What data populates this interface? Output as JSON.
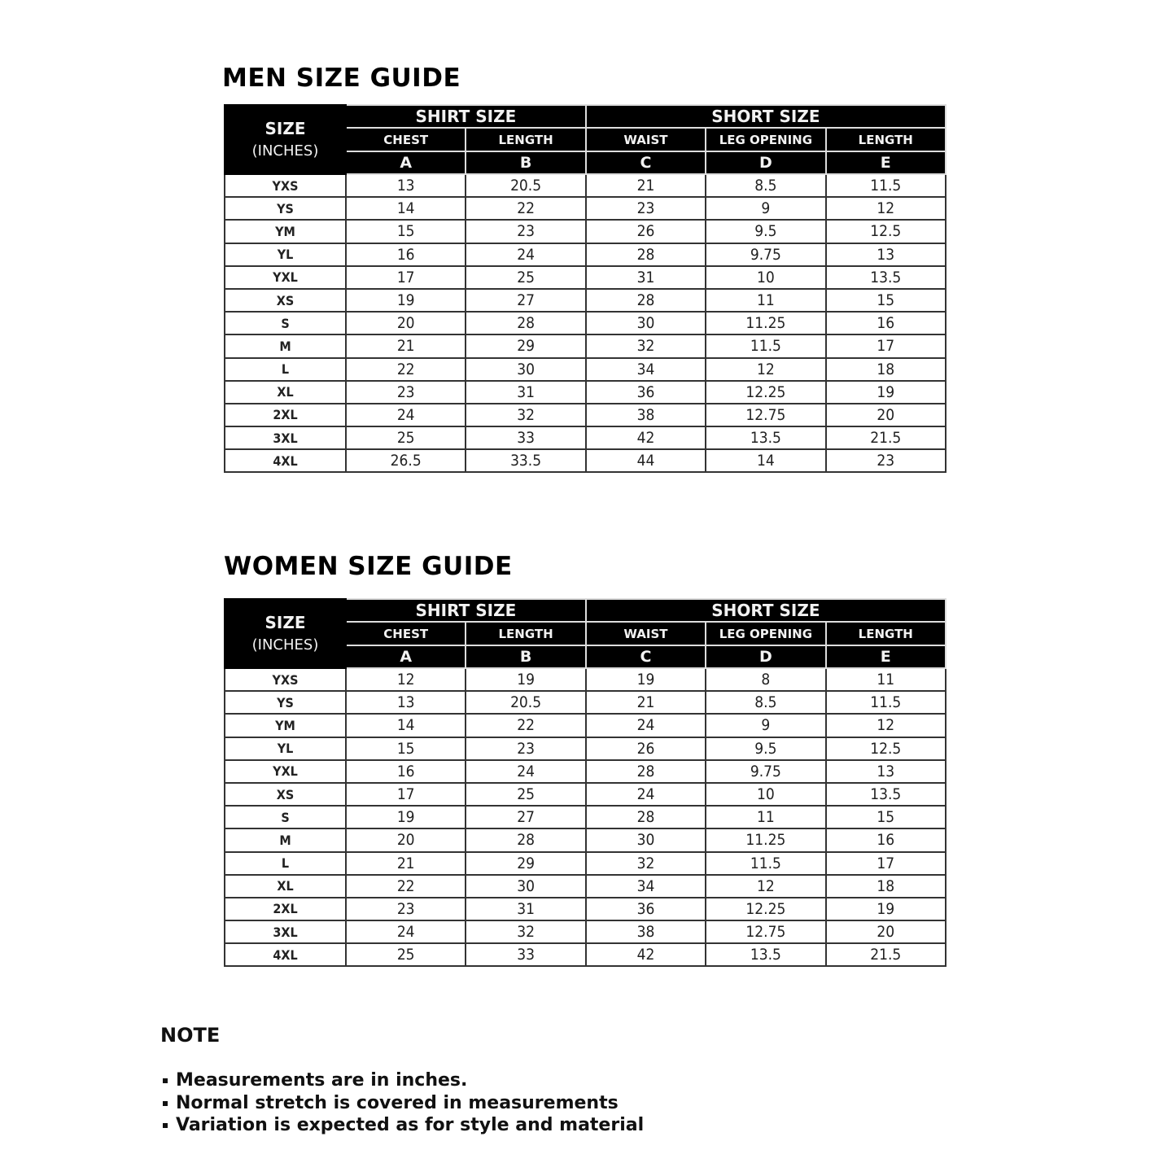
{
  "men": {
    "title": "MEN SIZE GUIDE",
    "header": {
      "size": "SIZE",
      "unit": "(INCHES)",
      "groups": [
        "SHIRT SIZE",
        "SHORT SIZE"
      ],
      "columns": [
        "CHEST",
        "LENGTH",
        "WAIST",
        "LEG OPENING",
        "LENGTH"
      ],
      "letters": [
        "A",
        "B",
        "C",
        "D",
        "E"
      ]
    },
    "rows": [
      [
        "YXS",
        "13",
        "20.5",
        "21",
        "8.5",
        "11.5"
      ],
      [
        "YS",
        "14",
        "22",
        "23",
        "9",
        "12"
      ],
      [
        "YM",
        "15",
        "23",
        "26",
        "9.5",
        "12.5"
      ],
      [
        "YL",
        "16",
        "24",
        "28",
        "9.75",
        "13"
      ],
      [
        "YXL",
        "17",
        "25",
        "31",
        "10",
        "13.5"
      ],
      [
        "XS",
        "19",
        "27",
        "28",
        "11",
        "15"
      ],
      [
        "S",
        "20",
        "28",
        "30",
        "11.25",
        "16"
      ],
      [
        "M",
        "21",
        "29",
        "32",
        "11.5",
        "17"
      ],
      [
        "L",
        "22",
        "30",
        "34",
        "12",
        "18"
      ],
      [
        "XL",
        "23",
        "31",
        "36",
        "12.25",
        "19"
      ],
      [
        "2XL",
        "24",
        "32",
        "38",
        "12.75",
        "20"
      ],
      [
        "3XL",
        "25",
        "33",
        "42",
        "13.5",
        "21.5"
      ],
      [
        "4XL",
        "26.5",
        "33.5",
        "44",
        "14",
        "23"
      ]
    ]
  },
  "women": {
    "title": "WOMEN SIZE GUIDE",
    "header": {
      "size": "SIZE",
      "unit": "(INCHES)",
      "groups": [
        "SHIRT SIZE",
        "SHORT SIZE"
      ],
      "columns": [
        "CHEST",
        "LENGTH",
        "WAIST",
        "LEG OPENING",
        "LENGTH"
      ],
      "letters": [
        "A",
        "B",
        "C",
        "D",
        "E"
      ]
    },
    "rows": [
      [
        "YXS",
        "12",
        "19",
        "19",
        "8",
        "11"
      ],
      [
        "YS",
        "13",
        "20.5",
        "21",
        "8.5",
        "11.5"
      ],
      [
        "YM",
        "14",
        "22",
        "24",
        "9",
        "12"
      ],
      [
        "YL",
        "15",
        "23",
        "26",
        "9.5",
        "12.5"
      ],
      [
        "YXL",
        "16",
        "24",
        "28",
        "9.75",
        "13"
      ],
      [
        "XS",
        "17",
        "25",
        "24",
        "10",
        "13.5"
      ],
      [
        "S",
        "19",
        "27",
        "28",
        "11",
        "15"
      ],
      [
        "M",
        "20",
        "28",
        "30",
        "11.25",
        "16"
      ],
      [
        "L",
        "21",
        "29",
        "32",
        "11.5",
        "17"
      ],
      [
        "XL",
        "22",
        "30",
        "34",
        "12",
        "18"
      ],
      [
        "2XL",
        "23",
        "31",
        "36",
        "12.25",
        "19"
      ],
      [
        "3XL",
        "24",
        "32",
        "38",
        "12.75",
        "20"
      ],
      [
        "4XL",
        "25",
        "33",
        "42",
        "13.5",
        "21.5"
      ]
    ]
  },
  "note": {
    "title": "NOTE",
    "items": [
      "Measurements are in inches.",
      "Normal stretch is covered in measurements",
      "Variation is expected as for style and material"
    ]
  }
}
